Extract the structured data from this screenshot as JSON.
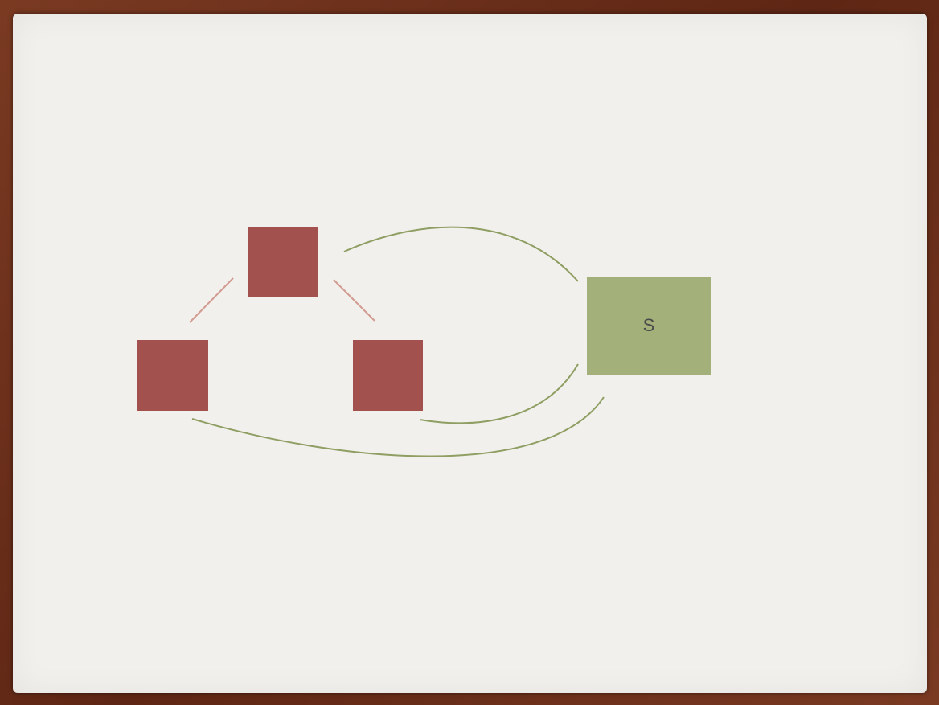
{
  "colors": {
    "frame": "#6b2f1a",
    "slide_background": "#f1f0ec",
    "red_box": "#a3514e",
    "red_connector": "#d29a90",
    "green_box": "#a3b07a",
    "green_connector": "#8f9e62"
  },
  "nodes": [
    {
      "id": "top",
      "label": "",
      "color_key": "red_box"
    },
    {
      "id": "left",
      "label": "",
      "color_key": "red_box"
    },
    {
      "id": "right",
      "label": "",
      "color_key": "red_box"
    },
    {
      "id": "s",
      "label": "S",
      "color_key": "green_box"
    }
  ],
  "edges": [
    {
      "from": "top",
      "to": "left",
      "style": "straight",
      "color_key": "red_connector"
    },
    {
      "from": "top",
      "to": "right",
      "style": "straight",
      "color_key": "red_connector"
    },
    {
      "from": "top",
      "to": "s",
      "style": "curved",
      "color_key": "green_connector"
    },
    {
      "from": "right",
      "to": "s",
      "style": "curved",
      "color_key": "green_connector"
    },
    {
      "from": "left",
      "to": "s",
      "style": "curved",
      "color_key": "green_connector"
    }
  ]
}
